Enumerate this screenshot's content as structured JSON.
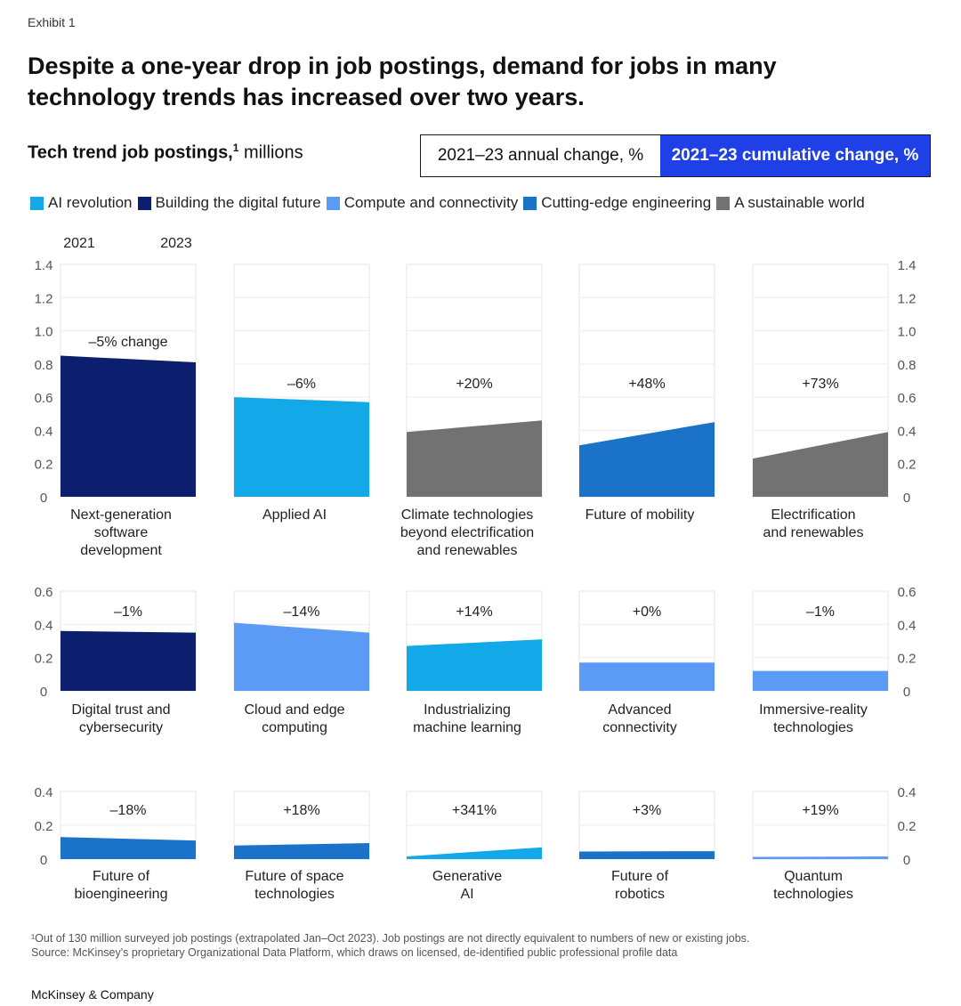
{
  "exhibit": "Exhibit 1",
  "title": "Despite a one-year drop in job postings, demand for jobs in many technology trends has increased over two years.",
  "subtitle_bold": "Tech trend job postings,",
  "subtitle_sup": "1",
  "subtitle_rest": " millions",
  "toggle": {
    "annual": "2021–23 annual change, %",
    "cumulative": "2021–23 cumulative change, %"
  },
  "year_start": "2021",
  "year_end": "2023",
  "legend": [
    {
      "label": "AI revolution",
      "color": "#13a9e8"
    },
    {
      "label": "Building the digital future",
      "color": "#0b1f6e"
    },
    {
      "label": "Compute and connectivity",
      "color": "#5b9bf5"
    },
    {
      "label": "Cutting-edge engineering",
      "color": "#1a73c9"
    },
    {
      "label": "A sustainable world",
      "color": "#727272"
    }
  ],
  "chart_data": [
    {
      "type": "area",
      "ylim": [
        0,
        1.4
      ],
      "yticks": [
        "0",
        "0.2",
        "0.4",
        "0.6",
        "0.8",
        "1.0",
        "1.2",
        "1.4"
      ],
      "x": [
        "2021",
        "2023"
      ],
      "panels": [
        {
          "name": "Next-generation software development",
          "group": "Building the digital future",
          "values": [
            0.85,
            0.81
          ],
          "change": "–5% change"
        },
        {
          "name": "Applied AI",
          "group": "AI revolution",
          "values": [
            0.6,
            0.57
          ],
          "change": "–6%"
        },
        {
          "name": "Climate technologies beyond electrification and renewables",
          "group": "A sustainable world",
          "values": [
            0.39,
            0.46
          ],
          "change": "+20%"
        },
        {
          "name": "Future of mobility",
          "group": "Cutting-edge engineering",
          "values": [
            0.31,
            0.45
          ],
          "change": "+48%"
        },
        {
          "name": "Electrification and renewables",
          "group": "A sustainable world",
          "values": [
            0.23,
            0.39
          ],
          "change": "+73%"
        }
      ]
    },
    {
      "type": "area",
      "ylim": [
        0,
        0.6
      ],
      "yticks": [
        "0",
        "0.2",
        "0.4",
        "0.6"
      ],
      "x": [
        "2021",
        "2023"
      ],
      "panels": [
        {
          "name": "Digital trust and cybersecurity",
          "group": "Building the digital future",
          "values": [
            0.36,
            0.35
          ],
          "change": "–1%"
        },
        {
          "name": "Cloud and edge computing",
          "group": "Compute and connectivity",
          "values": [
            0.41,
            0.35
          ],
          "change": "–14%"
        },
        {
          "name": "Industrializing machine learning",
          "group": "AI revolution",
          "values": [
            0.27,
            0.31
          ],
          "change": "+14%"
        },
        {
          "name": "Advanced connectivity",
          "group": "Compute and connectivity",
          "values": [
            0.17,
            0.17
          ],
          "change": "+0%"
        },
        {
          "name": "Immersive-reality technologies",
          "group": "Compute and connectivity",
          "values": [
            0.12,
            0.12
          ],
          "change": "–1%"
        }
      ]
    },
    {
      "type": "area",
      "ylim": [
        0,
        0.4
      ],
      "yticks": [
        "0",
        "0.2",
        "0.4"
      ],
      "x": [
        "2021",
        "2023"
      ],
      "panels": [
        {
          "name": "Future of bioengineering",
          "group": "Cutting-edge engineering",
          "values": [
            0.13,
            0.11
          ],
          "change": "–18%"
        },
        {
          "name": "Future of space technologies",
          "group": "Cutting-edge engineering",
          "values": [
            0.08,
            0.095
          ],
          "change": "+18%"
        },
        {
          "name": "Generative AI",
          "group": "AI revolution",
          "values": [
            0.016,
            0.07
          ],
          "change": "+341%"
        },
        {
          "name": "Future of robotics",
          "group": "Cutting-edge engineering",
          "values": [
            0.045,
            0.047
          ],
          "change": "+3%"
        },
        {
          "name": "Quantum technologies",
          "group": "Compute and connectivity",
          "values": [
            0.013,
            0.016
          ],
          "change": "+19%"
        }
      ]
    }
  ],
  "panel_label_lines": [
    [
      [
        "Next-generation",
        "software",
        "development"
      ],
      [
        "Applied AI"
      ],
      [
        "Climate technologies",
        "beyond electrification",
        "and renewables"
      ],
      [
        "Future of mobility"
      ],
      [
        "Electrification",
        "and renewables"
      ]
    ],
    [
      [
        "Digital trust and",
        "cybersecurity"
      ],
      [
        "Cloud and edge",
        "computing"
      ],
      [
        "Industrializing",
        "machine learning"
      ],
      [
        "Advanced",
        "connectivity"
      ],
      [
        "Immersive-reality",
        "technologies"
      ]
    ],
    [
      [
        "Future of",
        "bioengineering"
      ],
      [
        "Future of space",
        "technologies"
      ],
      [
        "Generative",
        "AI"
      ],
      [
        "Future of",
        "robotics"
      ],
      [
        "Quantum",
        "technologies"
      ]
    ]
  ],
  "footnote_1": "¹Out of 130 million surveyed job postings (extrapolated Jan–Oct 2023). Job postings are not directly equivalent to numbers of new or existing jobs.",
  "footnote_2": "Source: McKinsey's proprietary Organizational Data Platform, which draws on licensed, de-identified public professional profile data",
  "brand": "McKinsey & Company"
}
